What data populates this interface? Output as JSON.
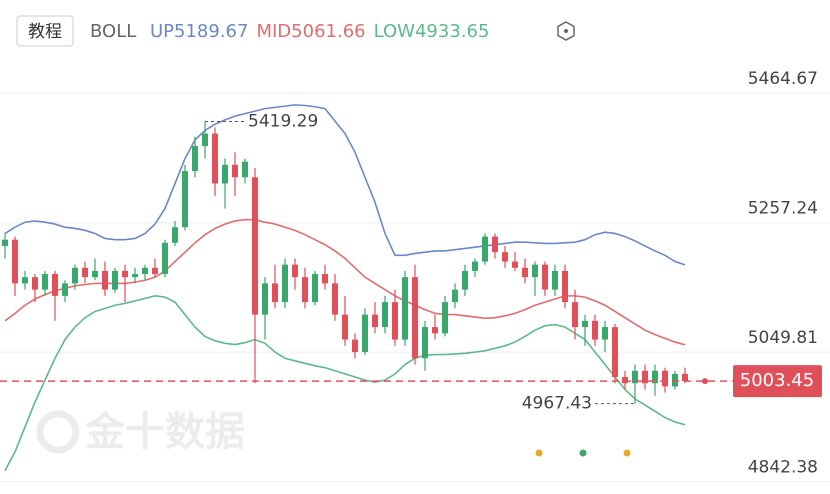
{
  "header": {
    "button": "教程",
    "indicator": "BOLL"
  },
  "watermark": "金十数据",
  "chart_data": {
    "type": "candlestick",
    "ylim": [
      4829,
      5614
    ],
    "yticks": [
      5464.67,
      5257.24,
      5049.81,
      4842.38
    ],
    "grid": true,
    "up_color": "#3aa76d",
    "down_color": "#e0505a",
    "open": [
      5220,
      5230,
      5160,
      5170,
      5150,
      5175,
      5140,
      5160,
      5185,
      5170,
      5180,
      5150,
      5180,
      5170,
      5175,
      5185,
      5175,
      5225,
      5250,
      5340,
      5380,
      5400,
      5320,
      5350,
      5330,
      5330,
      5110,
      5160,
      5130,
      5190,
      5170,
      5130,
      5175,
      5160,
      5110,
      5070,
      5050,
      5110,
      5090,
      5130,
      5070,
      5170,
      5040,
      5090,
      5080,
      5130,
      5150,
      5180,
      5195,
      5235,
      5210,
      5195,
      5185,
      5170,
      5190,
      5150,
      5180,
      5130,
      5090,
      5100,
      5070,
      5090,
      5010,
      5000,
      5020,
      5000,
      5020,
      4995,
      5015
    ],
    "high": [
      5240,
      5235,
      5180,
      5175,
      5180,
      5180,
      5165,
      5190,
      5195,
      5200,
      5195,
      5185,
      5190,
      5185,
      5190,
      5200,
      5230,
      5260,
      5350,
      5395,
      5419.29,
      5410,
      5360,
      5370,
      5360,
      5345,
      5170,
      5190,
      5200,
      5200,
      5185,
      5180,
      5190,
      5175,
      5140,
      5080,
      5120,
      5130,
      5140,
      5150,
      5180,
      5190,
      5100,
      5110,
      5140,
      5160,
      5190,
      5200,
      5240,
      5240,
      5220,
      5210,
      5200,
      5195,
      5195,
      5190,
      5190,
      5150,
      5110,
      5110,
      5100,
      5095,
      5020,
      5030,
      5030,
      5030,
      5025,
      5020,
      5025
    ],
    "low": [
      5200,
      5140,
      5150,
      5130,
      5140,
      5100,
      5130,
      5150,
      5160,
      5165,
      5140,
      5145,
      5130,
      5160,
      5165,
      5170,
      5170,
      5220,
      5245,
      5330,
      5360,
      5300,
      5280,
      5300,
      5320,
      5000,
      5070,
      5120,
      5120,
      5150,
      5120,
      5125,
      5150,
      5100,
      5060,
      5040,
      5045,
      5080,
      5080,
      5060,
      5060,
      5030,
      5020,
      5070,
      5075,
      5120,
      5140,
      5170,
      5190,
      5200,
      5185,
      5180,
      5160,
      5140,
      5140,
      5140,
      5120,
      5070,
      5060,
      5060,
      5050,
      5000,
      4990,
      4967.43,
      4990,
      4980,
      4985,
      4990,
      5000
    ],
    "close": [
      5230,
      5160,
      5170,
      5150,
      5175,
      5140,
      5160,
      5185,
      5170,
      5180,
      5150,
      5180,
      5170,
      5175,
      5185,
      5175,
      5225,
      5250,
      5340,
      5380,
      5400,
      5320,
      5350,
      5330,
      5355,
      5110,
      5160,
      5130,
      5190,
      5170,
      5130,
      5175,
      5160,
      5110,
      5070,
      5050,
      5110,
      5090,
      5130,
      5070,
      5170,
      5040,
      5090,
      5080,
      5130,
      5150,
      5180,
      5195,
      5235,
      5210,
      5195,
      5185,
      5170,
      5190,
      5150,
      5180,
      5130,
      5090,
      5100,
      5070,
      5090,
      5010,
      5000,
      5020,
      5000,
      5020,
      4995,
      5015,
      5003.45
    ],
    "series": [
      {
        "name": "UP",
        "color": "#6c87c8",
        "values": [
          5240,
          5250,
          5258,
          5260,
          5258,
          5255,
          5250,
          5248,
          5245,
          5240,
          5232,
          5230,
          5230,
          5232,
          5240,
          5255,
          5280,
          5320,
          5360,
          5390,
          5405,
          5415,
          5422,
          5428,
          5432,
          5436,
          5440,
          5442,
          5444,
          5446,
          5445,
          5443,
          5440,
          5420,
          5400,
          5370,
          5330,
          5290,
          5240,
          5205,
          5205,
          5208,
          5210,
          5212,
          5212,
          5214,
          5216,
          5218,
          5220,
          5222,
          5224,
          5226,
          5226,
          5225,
          5224,
          5224,
          5225,
          5226,
          5230,
          5238,
          5242,
          5240,
          5235,
          5228,
          5220,
          5212,
          5205,
          5195,
          5189.67
        ]
      },
      {
        "name": "MID",
        "color": "#e06c6c",
        "values": [
          5100,
          5112,
          5125,
          5135,
          5142,
          5148,
          5152,
          5156,
          5158,
          5160,
          5160,
          5160,
          5160,
          5162,
          5165,
          5170,
          5180,
          5195,
          5210,
          5225,
          5238,
          5248,
          5255,
          5260,
          5262,
          5262,
          5258,
          5255,
          5250,
          5245,
          5238,
          5230,
          5222,
          5212,
          5200,
          5185,
          5170,
          5160,
          5150,
          5140,
          5132,
          5125,
          5118,
          5112,
          5110,
          5110,
          5108,
          5106,
          5104,
          5105,
          5108,
          5112,
          5118,
          5125,
          5130,
          5135,
          5140,
          5140,
          5138,
          5132,
          5125,
          5115,
          5105,
          5095,
          5085,
          5078,
          5072,
          5066,
          5061.66
        ]
      },
      {
        "name": "LOW",
        "color": "#5cb98a",
        "values": [
          4860,
          4890,
          4930,
          4970,
          5005,
          5040,
          5070,
          5090,
          5105,
          5115,
          5120,
          5125,
          5128,
          5132,
          5136,
          5140,
          5138,
          5130,
          5110,
          5090,
          5075,
          5068,
          5064,
          5062,
          5065,
          5070,
          5064,
          5050,
          5040,
          5036,
          5032,
          5028,
          5025,
          5020,
          5015,
          5010,
          5005,
          5002,
          5005,
          5015,
          5030,
          5040,
          5045,
          5046,
          5046,
          5047,
          5048,
          5050,
          5052,
          5056,
          5060,
          5066,
          5075,
          5085,
          5092,
          5094,
          5090,
          5080,
          5070,
          5050,
          5030,
          5010,
          4990,
          4975,
          4965,
          4955,
          4945,
          4938,
          4933.65
        ]
      }
    ]
  }
}
